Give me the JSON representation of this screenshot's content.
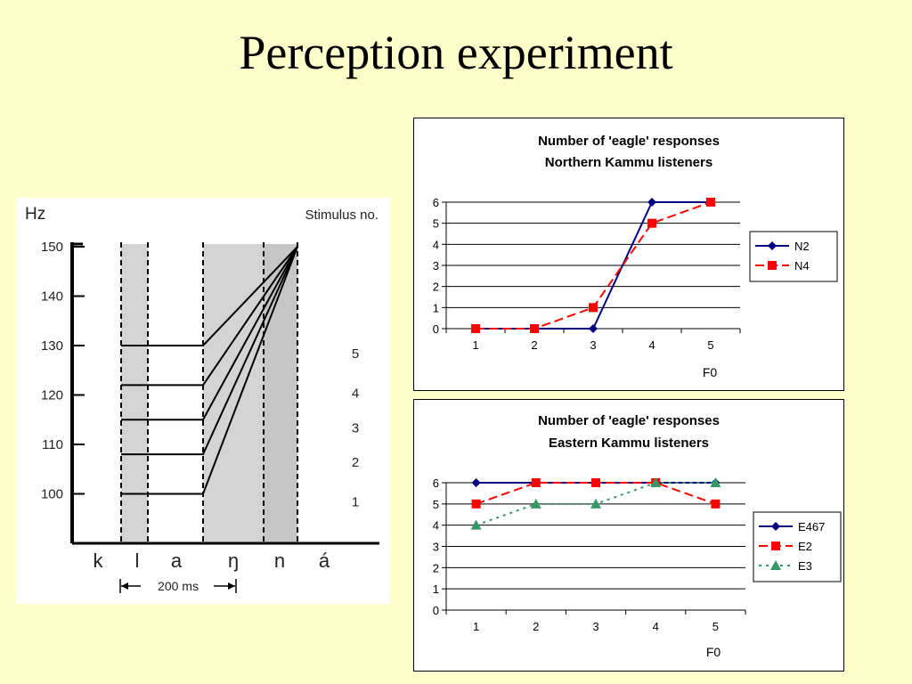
{
  "slide": {
    "title": "Perception experiment"
  },
  "colors": {
    "background": "#ffffcc",
    "navy": "#000080",
    "red": "#ff0000",
    "green": "#339966"
  },
  "stimulus": {
    "y_unit": "Hz",
    "stimulus_label": "Stimulus no.",
    "y_ticks": [
      "150",
      "140",
      "130",
      "120",
      "110",
      "100"
    ],
    "f0_onsets_hz": [
      130,
      122,
      115,
      108,
      100
    ],
    "f0_target_hz": 150,
    "stimulus_numbers": [
      "5",
      "4",
      "3",
      "2",
      "1"
    ],
    "phonemes": [
      "k",
      "l",
      "a",
      "ŋ",
      "n",
      "á"
    ],
    "duration_label": "200 ms"
  },
  "chart_data": [
    {
      "type": "line",
      "title": "Number of 'eagle' responses",
      "subtitle": "Northern Kammu listeners",
      "categories": [
        "1",
        "2",
        "3",
        "4",
        "5"
      ],
      "xlabel": "F0",
      "ylabel": "",
      "ylim": [
        0,
        6
      ],
      "yticks": [
        "0",
        "1",
        "2",
        "3",
        "4",
        "5",
        "6"
      ],
      "grid": true,
      "legend_placement": "right",
      "series": [
        {
          "name": "N2",
          "values": [
            0,
            0,
            0,
            6,
            6
          ],
          "color": "#000080",
          "marker": "diamond",
          "dash": "solid"
        },
        {
          "name": "N4",
          "values": [
            0,
            0,
            1,
            5,
            6
          ],
          "color": "#ff0000",
          "marker": "square",
          "dash": "dashed"
        }
      ]
    },
    {
      "type": "line",
      "title": "Number of 'eagle' responses",
      "subtitle": "Eastern Kammu listeners",
      "categories": [
        "1",
        "2",
        "3",
        "4",
        "5"
      ],
      "xlabel": "F0",
      "ylabel": "",
      "ylim": [
        0,
        6
      ],
      "yticks": [
        "0",
        "1",
        "2",
        "3",
        "4",
        "5",
        "6"
      ],
      "grid": true,
      "legend_placement": "right",
      "series": [
        {
          "name": "E467",
          "values": [
            6,
            6,
            6,
            6,
            6
          ],
          "color": "#000080",
          "marker": "diamond",
          "dash": "solid"
        },
        {
          "name": "E2",
          "values": [
            5,
            6,
            6,
            6,
            5
          ],
          "color": "#ff0000",
          "marker": "square",
          "dash": "dashed"
        },
        {
          "name": "E3",
          "values": [
            4,
            5,
            5,
            6,
            6
          ],
          "color": "#339966",
          "marker": "triangle",
          "dash": "dotted"
        }
      ]
    }
  ]
}
